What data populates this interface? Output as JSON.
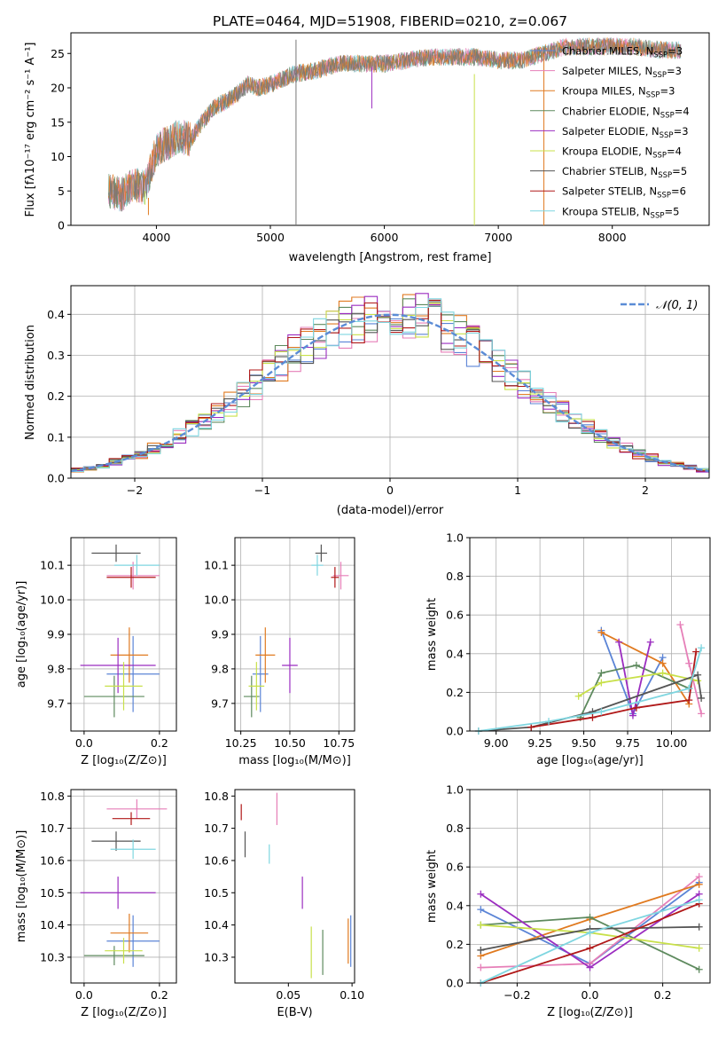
{
  "figure_title": "PLATE=0464, MJD=51908, FIBERID=0210, z=0.067",
  "colors": {
    "Chabrier MILES": "#5b84d6",
    "Salpeter MILES": "#e67fb8",
    "Kroupa MILES": "#e07a20",
    "Chabrier ELODIE": "#5e8a5e",
    "Salpeter ELODIE": "#9b2dc0",
    "Kroupa ELODIE": "#c8e04a",
    "Chabrier STELIB": "#555555",
    "Salpeter STELIB": "#b01818",
    "Kroupa STELIB": "#7fd6e0",
    "normal": "#5b8cd6",
    "spectrum": "#777777"
  },
  "chart_data": [
    {
      "id": "spectrum",
      "type": "line",
      "xlabel": "wavelength [Angstrom, rest frame]",
      "ylabel": "Flux [fλ10⁻¹⁷ erg cm⁻² s⁻¹ A⁻¹]",
      "xlim": [
        3250,
        8850
      ],
      "ylim": [
        0,
        28
      ],
      "xticks": [
        4000,
        5000,
        6000,
        7000,
        8000
      ],
      "yticks": [
        0,
        5,
        10,
        15,
        20,
        25
      ],
      "grid": false,
      "legend_position": "right",
      "continuum": {
        "x": [
          3580,
          3700,
          3800,
          3900,
          3950,
          4000,
          4100,
          4200,
          4300,
          4400,
          4500,
          4600,
          4700,
          4800,
          4900,
          5000,
          5200,
          5400,
          5600,
          5800,
          6000,
          6200,
          6400,
          6600,
          6800,
          7000,
          7200,
          7400,
          7600,
          7800,
          8000,
          8200,
          8400,
          8600
        ],
        "y": [
          5,
          4.5,
          6,
          5.5,
          8,
          11,
          12,
          13,
          12.5,
          15,
          17,
          18,
          19,
          20.5,
          20,
          20.5,
          22,
          22.5,
          23.5,
          23.5,
          23.5,
          24,
          24.5,
          24.5,
          24.5,
          24,
          24,
          25,
          26,
          26,
          26,
          26,
          25.5,
          25.5
        ]
      },
      "spikes": [
        {
          "x": 3900,
          "y0": 3,
          "y1": 5
        },
        {
          "x": 3930,
          "y0": 1.5,
          "y1": 4
        },
        {
          "x": 5225,
          "y0": 0,
          "y1": 27
        },
        {
          "x": 5890,
          "y0": 17,
          "y1": 23
        },
        {
          "x": 6790,
          "y0": 0,
          "y1": 22
        },
        {
          "x": 7400,
          "y0": 0,
          "y1": 25
        }
      ],
      "series": [
        {
          "name": "Chabrier MILES",
          "label_sub": "SSP",
          "n": 3
        },
        {
          "name": "Salpeter MILES",
          "label_sub": "SSP",
          "n": 3
        },
        {
          "name": "Kroupa MILES",
          "label_sub": "SSP",
          "n": 3
        },
        {
          "name": "Chabrier ELODIE",
          "label_sub": "SSP",
          "n": 4
        },
        {
          "name": "Salpeter ELODIE",
          "label_sub": "SSP",
          "n": 3
        },
        {
          "name": "Kroupa ELODIE",
          "label_sub": "SSP",
          "n": 4
        },
        {
          "name": "Chabrier STELIB",
          "label_sub": "SSP",
          "n": 5
        },
        {
          "name": "Salpeter STELIB",
          "label_sub": "SSP",
          "n": 6
        },
        {
          "name": "Kroupa STELIB",
          "label_sub": "SSP",
          "n": 5
        }
      ]
    },
    {
      "id": "residuals",
      "type": "line",
      "xlabel": "(data-model)/error",
      "ylabel": "Normed distribution",
      "xlim": [
        -2.5,
        2.5
      ],
      "ylim": [
        0,
        0.47
      ],
      "xticks": [
        -2,
        -1,
        0,
        1,
        2
      ],
      "xtick_labels": [
        "−2",
        "−1",
        "0",
        "1",
        "2"
      ],
      "yticks": [
        0.0,
        0.1,
        0.2,
        0.3,
        0.4
      ],
      "ytick_labels": [
        "0.0",
        "0.1",
        "0.2",
        "0.3",
        "0.4"
      ],
      "grid": true,
      "legend_position": "top-right",
      "normal_label": "𝒩(0, 1)",
      "hist_bin_width": 0.1,
      "hist_range": [
        -2.5,
        2.5
      ]
    },
    {
      "id": "age_vs_Z",
      "type": "scatter",
      "xlabel": "Z [log₁₀(Z/Z⊙)]",
      "ylabel": "age  [log₁₀(age/yr)]",
      "xlim": [
        -0.035,
        0.245
      ],
      "ylim": [
        9.62,
        10.18
      ],
      "xticks": [
        0.0,
        0.2
      ],
      "xtick_labels": [
        "0.0",
        "0.2"
      ],
      "yticks": [
        9.7,
        9.8,
        9.9,
        10.0,
        10.1
      ],
      "ytick_labels": [
        "9.7",
        "9.8",
        "9.9",
        "10.0",
        "10.1"
      ],
      "grid": true,
      "points": [
        {
          "model": "Chabrier MILES",
          "x": 0.13,
          "y": 9.785,
          "xerr": 0.07,
          "yerr": 0.11
        },
        {
          "model": "Salpeter MILES",
          "x": 0.13,
          "y": 10.07,
          "xerr": 0.07,
          "yerr": 0.04
        },
        {
          "model": "Kroupa MILES",
          "x": 0.12,
          "y": 9.84,
          "xerr": 0.05,
          "yerr": 0.08
        },
        {
          "model": "Chabrier ELODIE",
          "x": 0.08,
          "y": 9.72,
          "xerr": 0.08,
          "yerr": 0.06
        },
        {
          "model": "Salpeter ELODIE",
          "x": 0.09,
          "y": 9.81,
          "xerr": 0.1,
          "yerr": 0.08
        },
        {
          "model": "Kroupa ELODIE",
          "x": 0.105,
          "y": 9.75,
          "xerr": 0.05,
          "yerr": 0.07
        },
        {
          "model": "Chabrier STELIB",
          "x": 0.085,
          "y": 10.135,
          "xerr": 0.065,
          "yerr": 0.025
        },
        {
          "model": "Salpeter STELIB",
          "x": 0.125,
          "y": 10.065,
          "xerr": 0.065,
          "yerr": 0.03
        },
        {
          "model": "Kroupa STELIB",
          "x": 0.14,
          "y": 10.1,
          "xerr": 0.06,
          "yerr": 0.03
        }
      ]
    },
    {
      "id": "age_vs_mass",
      "type": "scatter",
      "xlabel": "mass [log₁₀(M/M⊙)]",
      "ylabel": "",
      "xlim": [
        10.22,
        10.83
      ],
      "ylim": [
        9.62,
        10.18
      ],
      "xticks": [
        10.25,
        10.5,
        10.75
      ],
      "xtick_labels": [
        "10.25",
        "10.50",
        "10.75"
      ],
      "yticks": [
        9.7,
        9.8,
        9.9,
        10.0,
        10.1
      ],
      "ytick_labels": [
        "9.7",
        "9.8",
        "9.9",
        "10.0",
        "10.1"
      ],
      "grid": true,
      "points": [
        {
          "model": "Chabrier MILES",
          "x": 10.35,
          "y": 9.785,
          "xerr": 0.04,
          "yerr": 0.11
        },
        {
          "model": "Salpeter MILES",
          "x": 10.76,
          "y": 10.07,
          "xerr": 0.04,
          "yerr": 0.04
        },
        {
          "model": "Kroupa MILES",
          "x": 10.375,
          "y": 9.84,
          "xerr": 0.05,
          "yerr": 0.08
        },
        {
          "model": "Chabrier ELODIE",
          "x": 10.305,
          "y": 9.72,
          "xerr": 0.04,
          "yerr": 0.06
        },
        {
          "model": "Salpeter ELODIE",
          "x": 10.5,
          "y": 9.81,
          "xerr": 0.04,
          "yerr": 0.08
        },
        {
          "model": "Kroupa ELODIE",
          "x": 10.33,
          "y": 9.75,
          "xerr": 0.04,
          "yerr": 0.07
        },
        {
          "model": "Chabrier STELIB",
          "x": 10.66,
          "y": 10.135,
          "xerr": 0.03,
          "yerr": 0.025
        },
        {
          "model": "Salpeter STELIB",
          "x": 10.73,
          "y": 10.065,
          "xerr": 0.02,
          "yerr": 0.03
        },
        {
          "model": "Kroupa STELIB",
          "x": 10.64,
          "y": 10.1,
          "xerr": 0.03,
          "yerr": 0.03
        }
      ]
    },
    {
      "id": "weight_vs_age",
      "type": "line",
      "xlabel": "age  [log₁₀(age/yr)]",
      "ylabel": "mass weight",
      "xlim": [
        8.85,
        10.22
      ],
      "ylim": [
        0,
        1.0
      ],
      "xticks": [
        9.0,
        9.25,
        9.5,
        9.75,
        10.0
      ],
      "xtick_labels": [
        "9.00",
        "9.25",
        "9.50",
        "9.75",
        "10.00"
      ],
      "yticks": [
        0.0,
        0.2,
        0.4,
        0.6,
        0.8,
        1.0
      ],
      "ytick_labels": [
        "0.0",
        "0.2",
        "0.4",
        "0.6",
        "0.8",
        "1.0"
      ],
      "grid": true,
      "series": [
        {
          "model": "Chabrier MILES",
          "x": [
            9.6,
            9.78,
            9.95
          ],
          "y": [
            0.52,
            0.09,
            0.38
          ]
        },
        {
          "model": "Salpeter MILES",
          "x": [
            10.05,
            10.1,
            10.17
          ],
          "y": [
            0.55,
            0.35,
            0.09
          ]
        },
        {
          "model": "Kroupa MILES",
          "x": [
            9.6,
            9.95,
            10.1
          ],
          "y": [
            0.51,
            0.35,
            0.14
          ]
        },
        {
          "model": "Chabrier ELODIE",
          "x": [
            9.48,
            9.6,
            9.8,
            10.1
          ],
          "y": [
            0.07,
            0.3,
            0.34,
            0.22
          ]
        },
        {
          "model": "Salpeter ELODIE",
          "x": [
            9.7,
            9.78,
            9.88
          ],
          "y": [
            0.46,
            0.08,
            0.46
          ]
        },
        {
          "model": "Kroupa ELODIE",
          "x": [
            9.47,
            9.6,
            9.95,
            10.15
          ],
          "y": [
            0.18,
            0.25,
            0.3,
            0.26
          ]
        },
        {
          "model": "Chabrier STELIB",
          "x": [
            8.9,
            9.2,
            9.55,
            10.15,
            10.17
          ],
          "y": [
            0.0,
            0.02,
            0.1,
            0.29,
            0.17
          ]
        },
        {
          "model": "Salpeter STELIB",
          "x": [
            9.2,
            9.55,
            9.8,
            10.1,
            10.14
          ],
          "y": [
            0.02,
            0.07,
            0.12,
            0.16,
            0.41
          ]
        },
        {
          "model": "Kroupa STELIB",
          "x": [
            8.9,
            9.3,
            9.6,
            10.1,
            10.17
          ],
          "y": [
            0.0,
            0.05,
            0.1,
            0.22,
            0.43
          ]
        }
      ]
    },
    {
      "id": "mass_vs_Z",
      "type": "scatter",
      "xlabel": "Z [log₁₀(Z/Z⊙)]",
      "ylabel": "mass [log₁₀(M/M⊙)]",
      "xlim": [
        -0.035,
        0.245
      ],
      "ylim": [
        10.22,
        10.82
      ],
      "xticks": [
        0.0,
        0.2
      ],
      "xtick_labels": [
        "0.0",
        "0.2"
      ],
      "yticks": [
        10.3,
        10.4,
        10.5,
        10.6,
        10.7,
        10.8
      ],
      "ytick_labels": [
        "10.3",
        "10.4",
        "10.5",
        "10.6",
        "10.7",
        "10.8"
      ],
      "grid": true,
      "points": [
        {
          "model": "Chabrier MILES",
          "x": 0.13,
          "y": 10.35,
          "xerr": 0.07,
          "yerr": 0.08
        },
        {
          "model": "Salpeter MILES",
          "x": 0.14,
          "y": 10.76,
          "xerr": 0.08,
          "yerr": 0.03
        },
        {
          "model": "Kroupa MILES",
          "x": 0.12,
          "y": 10.375,
          "xerr": 0.05,
          "yerr": 0.06
        },
        {
          "model": "Chabrier ELODIE",
          "x": 0.08,
          "y": 10.305,
          "xerr": 0.08,
          "yerr": 0.03
        },
        {
          "model": "Salpeter ELODIE",
          "x": 0.09,
          "y": 10.5,
          "xerr": 0.1,
          "yerr": 0.05
        },
        {
          "model": "Kroupa ELODIE",
          "x": 0.105,
          "y": 10.32,
          "xerr": 0.05,
          "yerr": 0.04
        },
        {
          "model": "Chabrier STELIB",
          "x": 0.085,
          "y": 10.66,
          "xerr": 0.065,
          "yerr": 0.03
        },
        {
          "model": "Salpeter STELIB",
          "x": 0.125,
          "y": 10.73,
          "xerr": 0.05,
          "yerr": 0.02
        },
        {
          "model": "Kroupa STELIB",
          "x": 0.13,
          "y": 10.635,
          "xerr": 0.06,
          "yerr": 0.03
        }
      ]
    },
    {
      "id": "mass_vs_ebv",
      "type": "scatter",
      "xlabel": "E(B-V)",
      "ylabel": "",
      "xlim": [
        0.008,
        0.102
      ],
      "ylim": [
        10.22,
        10.82
      ],
      "xticks": [
        0.05,
        0.1
      ],
      "xtick_labels": [
        "0.05",
        "0.10"
      ],
      "yticks": [
        10.3,
        10.4,
        10.5,
        10.6,
        10.7,
        10.8
      ],
      "ytick_labels": [
        "10.3",
        "10.4",
        "10.5",
        "10.6",
        "10.7",
        "10.8"
      ],
      "grid": false,
      "points": [
        {
          "model": "Chabrier MILES",
          "x": 0.099,
          "y": 10.35,
          "xerr": 0.0,
          "yerr": 0.08
        },
        {
          "model": "Salpeter MILES",
          "x": 0.041,
          "y": 10.76,
          "xerr": 0.0,
          "yerr": 0.05
        },
        {
          "model": "Kroupa MILES",
          "x": 0.097,
          "y": 10.35,
          "xerr": 0.0,
          "yerr": 0.07
        },
        {
          "model": "Chabrier ELODIE",
          "x": 0.077,
          "y": 10.315,
          "xerr": 0.0,
          "yerr": 0.07
        },
        {
          "model": "Salpeter ELODIE",
          "x": 0.061,
          "y": 10.5,
          "xerr": 0.0,
          "yerr": 0.05
        },
        {
          "model": "Kroupa ELODIE",
          "x": 0.068,
          "y": 10.315,
          "xerr": 0.0,
          "yerr": 0.08
        },
        {
          "model": "Chabrier STELIB",
          "x": 0.016,
          "y": 10.65,
          "xerr": 0.0,
          "yerr": 0.04
        },
        {
          "model": "Salpeter STELIB",
          "x": 0.013,
          "y": 10.75,
          "xerr": 0.0,
          "yerr": 0.025
        },
        {
          "model": "Kroupa STELIB",
          "x": 0.035,
          "y": 10.62,
          "xerr": 0.0,
          "yerr": 0.03
        }
      ]
    },
    {
      "id": "weight_vs_Z",
      "type": "line",
      "xlabel": "Z [log₁₀(Z/Z⊙)]",
      "ylabel": "mass weight",
      "xlim": [
        -0.33,
        0.33
      ],
      "ylim": [
        0,
        1.0
      ],
      "xticks": [
        -0.2,
        0.0,
        0.2
      ],
      "xtick_labels": [
        "−0.2",
        "0.0",
        "0.2"
      ],
      "yticks": [
        0.0,
        0.2,
        0.4,
        0.6,
        0.8,
        1.0
      ],
      "ytick_labels": [
        "0.0",
        "0.2",
        "0.4",
        "0.6",
        "0.8",
        "1.0"
      ],
      "grid": true,
      "series": [
        {
          "model": "Chabrier MILES",
          "x": [
            -0.3,
            0.0,
            0.3
          ],
          "y": [
            0.38,
            0.1,
            0.52
          ]
        },
        {
          "model": "Salpeter MILES",
          "x": [
            -0.3,
            0.0,
            0.3
          ],
          "y": [
            0.08,
            0.1,
            0.55
          ]
        },
        {
          "model": "Kroupa MILES",
          "x": [
            -0.3,
            0.0,
            0.3
          ],
          "y": [
            0.14,
            0.33,
            0.51
          ]
        },
        {
          "model": "Chabrier ELODIE",
          "x": [
            -0.3,
            0.0,
            0.3
          ],
          "y": [
            0.3,
            0.34,
            0.07
          ]
        },
        {
          "model": "Salpeter ELODIE",
          "x": [
            -0.3,
            0.0,
            0.3
          ],
          "y": [
            0.46,
            0.08,
            0.46
          ]
        },
        {
          "model": "Kroupa ELODIE",
          "x": [
            -0.3,
            0.0,
            0.3
          ],
          "y": [
            0.3,
            0.26,
            0.18
          ]
        },
        {
          "model": "Chabrier STELIB",
          "x": [
            -0.3,
            0.0,
            0.3
          ],
          "y": [
            0.17,
            0.28,
            0.29
          ]
        },
        {
          "model": "Salpeter STELIB",
          "x": [
            -0.3,
            0.0,
            0.3
          ],
          "y": [
            0.0,
            0.18,
            0.41
          ]
        },
        {
          "model": "Kroupa STELIB",
          "x": [
            -0.3,
            0.0,
            0.3
          ],
          "y": [
            0.0,
            0.26,
            0.43
          ]
        }
      ]
    }
  ]
}
